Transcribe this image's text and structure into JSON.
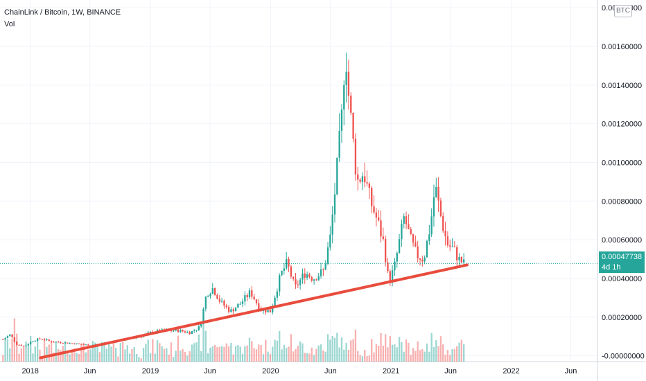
{
  "legend": {
    "symbol": "ChainLink / Bitcoin, 1W, BINANCE",
    "volume": "Vol"
  },
  "currency_badge": "BTC",
  "price_tag": {
    "price": "0.00047738",
    "countdown": "4d 1h"
  },
  "colors": {
    "up": "#26a69a",
    "down": "#ef5350",
    "trendline": "#e84c3d",
    "grid": "#f0f3fa",
    "axis_text": "#131722"
  },
  "chart_data": {
    "type": "candlestick",
    "symbol": "ChainLink / Bitcoin",
    "interval": "1W",
    "exchange": "BINANCE",
    "y_axis": {
      "ticks": [
        0.0,
        0.0002,
        0.0004,
        0.0006,
        0.0008,
        0.001,
        0.0012,
        0.0014,
        0.0016,
        0.0018
      ],
      "tick_labels": [
        "-0.00000000",
        "0.00020000",
        "0.00040000",
        "0.00060000",
        "0.00080000",
        "0.00100000",
        "0.00120000",
        "0.00140000",
        "0.00160000",
        "0.00180000"
      ],
      "range": [
        -3e-05,
        0.00184
      ]
    },
    "x_axis": {
      "ticks": [
        "2018-01-01",
        "2018-07-01",
        "2019-01-01",
        "2019-07-01",
        "2020-01-01",
        "2020-07-01",
        "2021-01-01",
        "2021-07-01",
        "2022-01-01",
        "2022-07-01"
      ],
      "tick_labels": [
        "2018",
        "Jun",
        "2019",
        "Jun",
        "2020",
        "Jun",
        "2021",
        "Jun",
        "2022",
        "Jun"
      ],
      "range": [
        "2017-10-01",
        "2022-09-20"
      ]
    },
    "current_price": 0.00047738,
    "trendline": [
      {
        "date": "2018-02-01",
        "price": -1e-05
      },
      {
        "date": "2021-08-20",
        "price": 0.00047
      }
    ],
    "price_series": [
      [
        "2017-10-10",
        8.5e-05
      ],
      [
        "2017-11-01",
        0.00011
      ],
      [
        "2017-11-20",
        6e-05
      ],
      [
        "2017-12-15",
        5e-05
      ],
      [
        "2018-01-10",
        8e-05
      ],
      [
        "2018-02-05",
        9e-05
      ],
      [
        "2018-03-01",
        7.5e-05
      ],
      [
        "2018-04-01",
        7e-05
      ],
      [
        "2018-05-01",
        6.5e-05
      ],
      [
        "2018-06-01",
        6e-05
      ],
      [
        "2018-07-01",
        5.5e-05
      ],
      [
        "2018-08-01",
        6e-05
      ],
      [
        "2018-09-01",
        7e-05
      ],
      [
        "2018-10-01",
        8e-05
      ],
      [
        "2018-11-01",
        9e-05
      ],
      [
        "2018-12-01",
        0.0001
      ],
      [
        "2019-01-01",
        0.00012
      ],
      [
        "2019-02-01",
        0.00013
      ],
      [
        "2019-03-01",
        0.00013
      ],
      [
        "2019-04-01",
        0.00013
      ],
      [
        "2019-05-01",
        0.00012
      ],
      [
        "2019-06-01",
        0.00015
      ],
      [
        "2019-06-20",
        0.00032
      ],
      [
        "2019-07-10",
        0.00035
      ],
      [
        "2019-08-01",
        0.00028
      ],
      [
        "2019-09-01",
        0.00023
      ],
      [
        "2019-10-01",
        0.00027
      ],
      [
        "2019-11-01",
        0.00033
      ],
      [
        "2019-12-01",
        0.00024
      ],
      [
        "2020-01-01",
        0.00023
      ],
      [
        "2020-02-01",
        0.00042
      ],
      [
        "2020-02-20",
        0.00048
      ],
      [
        "2020-03-15",
        0.00035
      ],
      [
        "2020-04-15",
        0.00043
      ],
      [
        "2020-05-10",
        0.0004
      ],
      [
        "2020-06-10",
        0.00044
      ],
      [
        "2020-07-01",
        0.00062
      ],
      [
        "2020-07-20",
        0.00095
      ],
      [
        "2020-08-05",
        0.00125
      ],
      [
        "2020-08-15",
        0.00162
      ],
      [
        "2020-08-25",
        0.00135
      ],
      [
        "2020-09-05",
        0.00115
      ],
      [
        "2020-09-20",
        0.0009
      ],
      [
        "2020-10-10",
        0.00095
      ],
      [
        "2020-10-30",
        0.0008
      ],
      [
        "2020-11-20",
        0.0007
      ],
      [
        "2020-12-10",
        0.00058
      ],
      [
        "2020-12-25",
        0.00038
      ],
      [
        "2021-01-10",
        0.00045
      ],
      [
        "2021-01-25",
        0.00058
      ],
      [
        "2021-02-10",
        0.00072
      ],
      [
        "2021-03-01",
        0.0006
      ],
      [
        "2021-03-20",
        0.00052
      ],
      [
        "2021-04-10",
        0.0005
      ],
      [
        "2021-05-01",
        0.00068
      ],
      [
        "2021-05-15",
        0.00088
      ],
      [
        "2021-06-01",
        0.00072
      ],
      [
        "2021-06-20",
        0.00058
      ],
      [
        "2021-07-10",
        0.00055
      ],
      [
        "2021-07-25",
        0.0005
      ],
      [
        "2021-08-10",
        0.000477
      ]
    ]
  }
}
